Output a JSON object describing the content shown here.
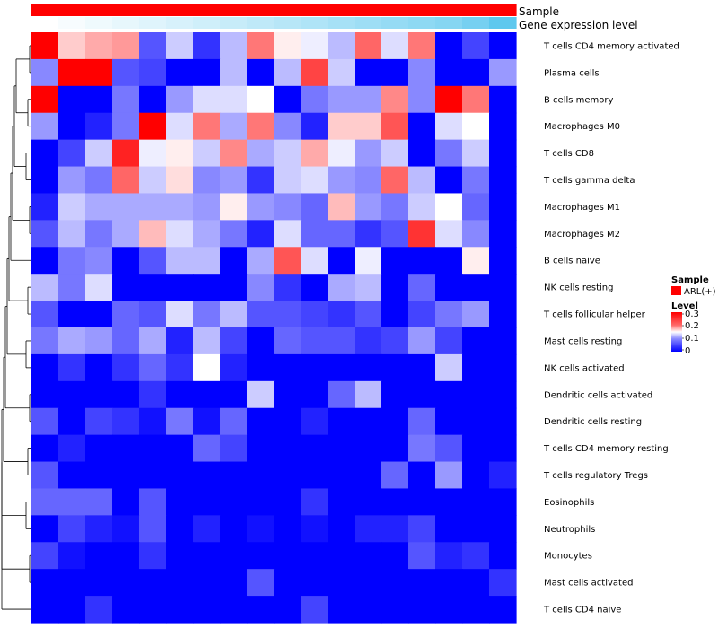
{
  "chart_data": {
    "type": "heatmap",
    "title": "",
    "annotation_tracks": [
      {
        "name": "Sample",
        "color": "#ff0000"
      },
      {
        "name": "Gene expression level",
        "gradient": [
          "#ffffff",
          "#5ec8ee"
        ]
      }
    ],
    "rows": [
      "T cells CD4 memory activated",
      "Plasma cells",
      "B cells memory",
      "Macrophages M0",
      "T cells CD8",
      "T cells gamma delta",
      "Macrophages M1",
      "Macrophages M2",
      "B cells naive",
      "NK cells resting",
      "T cells follicular helper",
      "Mast cells resting",
      "NK cells activated",
      "Dendritic cells activated",
      "Dendritic cells resting",
      "T cells CD4 memory resting",
      "T cells regulatory  Tregs",
      "Eosinophils",
      "Neutrophils",
      "Monocytes",
      "Mast cells activated",
      "T cells CD4 naive"
    ],
    "n_columns": 18,
    "values": [
      [
        0.3,
        0.18,
        0.2,
        0.21,
        0.05,
        0.12,
        0.03,
        0.11,
        0.23,
        0.16,
        0.14,
        0.11,
        0.24,
        0.13,
        0.23,
        0.0,
        0.04,
        0.0
      ],
      [
        0.08,
        0.3,
        0.3,
        0.05,
        0.04,
        0.0,
        0.0,
        0.11,
        0.0,
        0.11,
        0.26,
        0.12,
        0.0,
        0.0,
        0.08,
        0.0,
        0.0,
        0.09
      ],
      [
        0.3,
        0.0,
        0.0,
        0.07,
        0.0,
        0.09,
        0.13,
        0.13,
        0.15,
        0.0,
        0.07,
        0.09,
        0.09,
        0.22,
        0.08,
        0.3,
        0.23,
        0.0
      ],
      [
        0.09,
        0.0,
        0.02,
        0.07,
        0.3,
        0.13,
        0.23,
        0.1,
        0.23,
        0.08,
        0.02,
        0.18,
        0.18,
        0.25,
        0.0,
        0.13,
        0.15,
        0.0
      ],
      [
        0.0,
        0.04,
        0.12,
        0.28,
        0.14,
        0.16,
        0.12,
        0.22,
        0.1,
        0.12,
        0.2,
        0.14,
        0.09,
        0.12,
        0.0,
        0.07,
        0.12,
        0.0
      ],
      [
        0.0,
        0.09,
        0.07,
        0.24,
        0.12,
        0.17,
        0.08,
        0.09,
        0.03,
        0.12,
        0.13,
        0.09,
        0.08,
        0.24,
        0.11,
        0.0,
        0.07,
        0.0
      ],
      [
        0.02,
        0.12,
        0.1,
        0.1,
        0.1,
        0.1,
        0.09,
        0.16,
        0.09,
        0.08,
        0.06,
        0.19,
        0.09,
        0.07,
        0.12,
        0.15,
        0.06,
        0.0
      ],
      [
        0.05,
        0.11,
        0.07,
        0.1,
        0.19,
        0.13,
        0.1,
        0.07,
        0.02,
        0.13,
        0.06,
        0.06,
        0.03,
        0.05,
        0.27,
        0.13,
        0.08,
        0.0
      ],
      [
        0.0,
        0.07,
        0.08,
        0.0,
        0.05,
        0.11,
        0.11,
        0.0,
        0.1,
        0.25,
        0.13,
        0.0,
        0.14,
        0.0,
        0.0,
        0.0,
        0.16,
        0.0
      ],
      [
        0.11,
        0.07,
        0.13,
        0.0,
        0.0,
        0.0,
        0.0,
        0.0,
        0.08,
        0.03,
        0.0,
        0.1,
        0.11,
        0.0,
        0.06,
        0.0,
        0.0,
        0.0
      ],
      [
        0.05,
        0.0,
        0.0,
        0.06,
        0.05,
        0.13,
        0.07,
        0.11,
        0.05,
        0.05,
        0.04,
        0.03,
        0.05,
        0.0,
        0.04,
        0.07,
        0.09,
        0.0
      ],
      [
        0.07,
        0.1,
        0.09,
        0.06,
        0.1,
        0.02,
        0.11,
        0.04,
        0.0,
        0.06,
        0.05,
        0.05,
        0.03,
        0.04,
        0.09,
        0.04,
        0.0,
        0.0
      ],
      [
        0.0,
        0.03,
        0.0,
        0.03,
        0.06,
        0.03,
        0.15,
        0.02,
        0.0,
        0.0,
        0.0,
        0.0,
        0.0,
        0.0,
        0.0,
        0.12,
        0.0,
        0.0
      ],
      [
        0.0,
        0.0,
        0.0,
        0.0,
        0.03,
        0.0,
        0.0,
        0.0,
        0.12,
        0.0,
        0.0,
        0.06,
        0.11,
        0.0,
        0.0,
        0.0,
        0.0,
        0.0
      ],
      [
        0.05,
        0.0,
        0.04,
        0.03,
        0.01,
        0.07,
        0.01,
        0.06,
        0.0,
        0.0,
        0.02,
        0.0,
        0.0,
        0.0,
        0.06,
        0.0,
        0.0,
        0.0
      ],
      [
        0.0,
        0.02,
        0.0,
        0.0,
        0.0,
        0.0,
        0.06,
        0.04,
        0.0,
        0.0,
        0.0,
        0.0,
        0.0,
        0.0,
        0.07,
        0.05,
        0.0,
        0.0
      ],
      [
        0.05,
        0.0,
        0.0,
        0.0,
        0.0,
        0.0,
        0.0,
        0.0,
        0.0,
        0.0,
        0.0,
        0.0,
        0.0,
        0.06,
        0.0,
        0.09,
        0.0,
        0.02
      ],
      [
        0.06,
        0.06,
        0.06,
        0.0,
        0.05,
        0.0,
        0.0,
        0.0,
        0.0,
        0.0,
        0.03,
        0.0,
        0.0,
        0.0,
        0.0,
        0.0,
        0.0,
        0.0
      ],
      [
        0.0,
        0.04,
        0.02,
        0.01,
        0.05,
        0.0,
        0.02,
        0.0,
        0.01,
        0.0,
        0.01,
        0.0,
        0.02,
        0.02,
        0.04,
        0.0,
        0.0,
        0.0
      ],
      [
        0.04,
        0.01,
        0.0,
        0.0,
        0.03,
        0.0,
        0.0,
        0.0,
        0.0,
        0.0,
        0.0,
        0.0,
        0.0,
        0.0,
        0.05,
        0.02,
        0.03,
        0.0
      ],
      [
        0.0,
        0.0,
        0.0,
        0.0,
        0.0,
        0.0,
        0.0,
        0.0,
        0.05,
        0.0,
        0.0,
        0.0,
        0.0,
        0.0,
        0.0,
        0.0,
        0.0,
        0.03
      ],
      [
        0.0,
        0.0,
        0.03,
        0.0,
        0.0,
        0.0,
        0.0,
        0.0,
        0.0,
        0.0,
        0.04,
        0.0,
        0.0,
        0.0,
        0.0,
        0.0,
        0.0,
        0.0
      ]
    ],
    "gene_expression_level": [
      0.0,
      0.05,
      0.1,
      0.15,
      0.2,
      0.25,
      0.3,
      0.35,
      0.4,
      0.45,
      0.5,
      0.55,
      0.6,
      0.65,
      0.7,
      0.75,
      0.85,
      1.0
    ],
    "color_scale": {
      "low": "#0000ff",
      "mid": "#ffffff",
      "high": "#ff0000",
      "range": [
        0,
        0.3
      ]
    },
    "dendrogram": "row hierarchical clustering tree on the left"
  },
  "legend": {
    "sample": {
      "title": "Sample",
      "entry": "ARL(+)",
      "color": "#ff0000"
    },
    "level": {
      "title": "Level",
      "ticks": [
        "0.3",
        "0.2",
        "0.1",
        "0"
      ]
    }
  }
}
